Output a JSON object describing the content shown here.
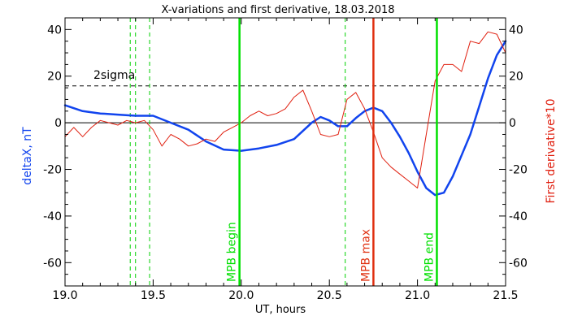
{
  "chart_data": {
    "type": "line",
    "title": "X-variations and first derivative, 18.03.2018",
    "xlabel": "UT, hours",
    "ylabel_left": "deltaX, nT",
    "ylabel_right": "First derivative*10",
    "xlim": [
      19.0,
      21.5
    ],
    "ylim": [
      -70,
      45
    ],
    "xticks": [
      "19.0",
      "19.5",
      "20.0",
      "20.5",
      "21.0",
      "21.5"
    ],
    "yticks": [
      "-60",
      "-40",
      "-20",
      "0",
      "20",
      "40"
    ],
    "threshold": {
      "label": "2sigma",
      "value": 15.8
    },
    "zero_line": 0,
    "dashed_markers": [
      19.37,
      19.4,
      19.48,
      20.59
    ],
    "event_markers": [
      {
        "label": "MPB begin",
        "x": 19.99,
        "color": "#00e000"
      },
      {
        "label": "MPB max",
        "x": 20.75,
        "color": "#e03010"
      },
      {
        "label": "MPB end",
        "x": 21.11,
        "color": "#00e000"
      }
    ],
    "series": [
      {
        "axis": "left",
        "color": "#1144ee",
        "x": [
          19.0,
          19.1,
          19.2,
          19.3,
          19.4,
          19.5,
          19.6,
          19.7,
          19.8,
          19.9,
          20.0,
          20.1,
          20.2,
          20.3,
          20.4,
          20.45,
          20.5,
          20.55,
          20.6,
          20.65,
          20.7,
          20.75,
          20.8,
          20.85,
          20.9,
          20.95,
          21.0,
          21.05,
          21.1,
          21.15,
          21.2,
          21.25,
          21.3,
          21.35,
          21.4,
          21.45,
          21.5
        ],
        "values": [
          7.5,
          5,
          4,
          3.5,
          3,
          3,
          0,
          -3,
          -8,
          -11.5,
          -12,
          -11,
          -9.5,
          -7,
          0,
          2.5,
          1,
          -1.5,
          -1.5,
          2,
          5,
          6.5,
          5,
          0,
          -6,
          -13,
          -21,
          -28,
          -31,
          -30,
          -23,
          -14,
          -5,
          7,
          19,
          29,
          35
        ]
      },
      {
        "axis": "right",
        "color": "#e02010",
        "x": [
          19.0,
          19.05,
          19.1,
          19.15,
          19.2,
          19.25,
          19.3,
          19.35,
          19.4,
          19.45,
          19.5,
          19.55,
          19.6,
          19.65,
          19.7,
          19.75,
          19.8,
          19.85,
          19.9,
          19.95,
          20.0,
          20.05,
          20.1,
          20.15,
          20.2,
          20.25,
          20.3,
          20.35,
          20.4,
          20.45,
          20.5,
          20.55,
          20.6,
          20.65,
          20.7,
          20.75,
          20.8,
          20.85,
          20.9,
          20.95,
          21.0,
          21.05,
          21.1,
          21.15,
          21.2,
          21.25,
          21.3,
          21.35,
          21.4,
          21.45,
          21.5
        ],
        "values": [
          -6,
          -2,
          -6,
          -2,
          1,
          0,
          -1,
          1,
          0,
          1,
          -3,
          -10,
          -5,
          -7,
          -10,
          -9,
          -7,
          -8,
          -4,
          -2,
          0,
          3,
          5,
          3,
          4,
          6,
          11,
          14,
          5,
          -5,
          -6,
          -5,
          10,
          13,
          6,
          -4,
          -15,
          -19,
          -22,
          -25,
          -28,
          -5,
          18,
          25,
          25,
          22,
          35,
          34,
          39,
          38,
          30
        ]
      }
    ]
  }
}
